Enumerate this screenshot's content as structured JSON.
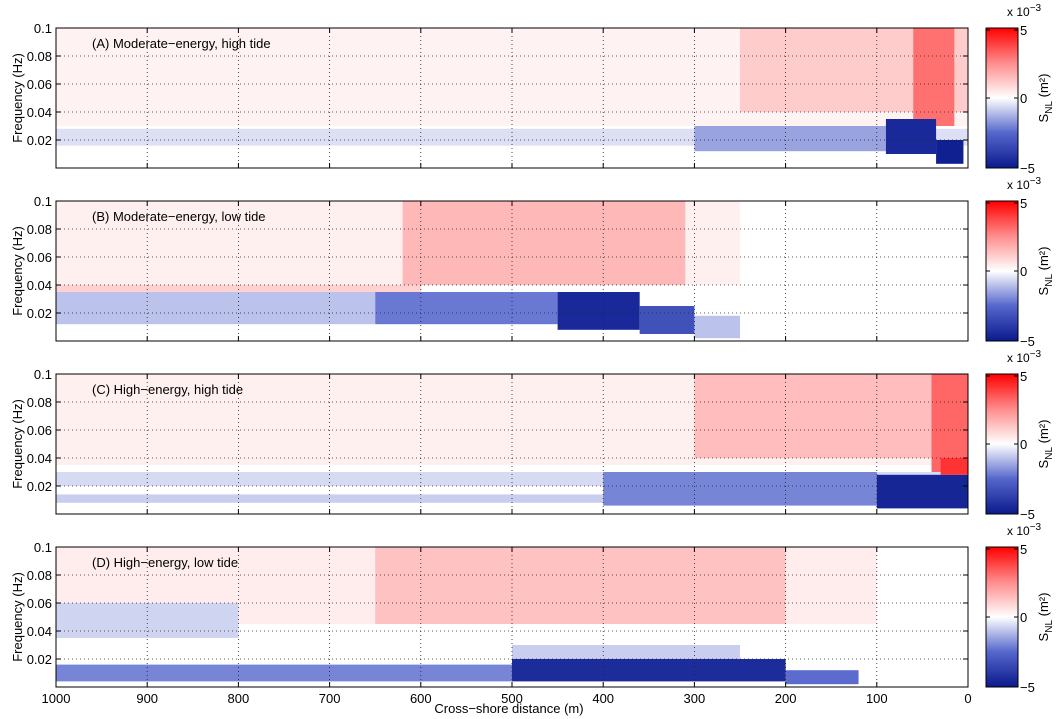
{
  "figure": {
    "xlabel": "Cross−shore distance (m)",
    "ylabel": "Frequency (Hz)",
    "colorbar_label_main": "S",
    "colorbar_label_sub": "NL",
    "colorbar_label_unit": " (m²)",
    "colorbar_exponent_prefix": "x 10",
    "colorbar_exponent_power": "−3"
  },
  "chart_data": [
    {
      "type": "heatmap",
      "panel": "A",
      "annotation": "(A) Moderate−energy, high tide",
      "xlabel": "",
      "ylabel": "Frequency (Hz)",
      "xlim": [
        1000,
        0
      ],
      "ylim": [
        0,
        0.1
      ],
      "x_reversed": true,
      "x_tick_values": [
        1000,
        900,
        800,
        700,
        600,
        500,
        400,
        300,
        200,
        100,
        0
      ],
      "x_tick_labels": [],
      "y_tick_values": [
        0.02,
        0.04,
        0.06,
        0.08,
        0.1
      ],
      "y_tick_labels": [
        "0.02",
        "0.04",
        "0.06",
        "0.08",
        "0.1"
      ],
      "grid": true,
      "colormap": "blue-white-red",
      "clim": [
        -5,
        5
      ],
      "color_units": "x 10^-3 m^2",
      "colorbar_ticks": [
        "−5",
        "0",
        "5"
      ],
      "features": [
        {
          "x_from": 1000,
          "x_to": 0,
          "f_from": 0.03,
          "f_to": 0.1,
          "value": 0.25
        },
        {
          "x_from": 250,
          "x_to": 0,
          "f_from": 0.04,
          "f_to": 0.1,
          "value": 1.0
        },
        {
          "x_from": 60,
          "x_to": 15,
          "f_from": 0.03,
          "f_to": 0.1,
          "value": 2.8
        },
        {
          "x_from": 1000,
          "x_to": 0,
          "f_from": 0.016,
          "f_to": 0.028,
          "value": -0.5
        },
        {
          "x_from": 300,
          "x_to": 90,
          "f_from": 0.012,
          "f_to": 0.03,
          "value": -1.5
        },
        {
          "x_from": 90,
          "x_to": 35,
          "f_from": 0.01,
          "f_to": 0.035,
          "value": -4.5
        },
        {
          "x_from": 35,
          "x_to": 5,
          "f_from": 0.003,
          "f_to": 0.02,
          "value": -4.8
        }
      ]
    },
    {
      "type": "heatmap",
      "panel": "B",
      "annotation": "(B) Moderate−energy, low tide",
      "xlabel": "",
      "ylabel": "Frequency (Hz)",
      "xlim": [
        1000,
        0
      ],
      "ylim": [
        0,
        0.1
      ],
      "x_reversed": true,
      "x_tick_values": [
        1000,
        900,
        800,
        700,
        600,
        500,
        400,
        300,
        200,
        100,
        0
      ],
      "x_tick_labels": [],
      "y_tick_values": [
        0.02,
        0.04,
        0.06,
        0.08,
        0.1
      ],
      "y_tick_labels": [
        "0.02",
        "0.04",
        "0.06",
        "0.08",
        "0.1"
      ],
      "grid": true,
      "colormap": "blue-white-red",
      "clim": [
        -5,
        5
      ],
      "color_units": "x 10^-3 m^2",
      "colorbar_ticks": [
        "−5",
        "0",
        "5"
      ],
      "features": [
        {
          "x_from": 1000,
          "x_to": 250,
          "f_from": 0.04,
          "f_to": 0.1,
          "value": 0.3
        },
        {
          "x_from": 620,
          "x_to": 310,
          "f_from": 0.04,
          "f_to": 0.1,
          "value": 1.4
        },
        {
          "x_from": 1000,
          "x_to": 600,
          "f_from": 0.035,
          "f_to": 0.04,
          "value": 0.9
        },
        {
          "x_from": 1000,
          "x_to": 650,
          "f_from": 0.012,
          "f_to": 0.035,
          "value": -1.0
        },
        {
          "x_from": 650,
          "x_to": 450,
          "f_from": 0.012,
          "f_to": 0.035,
          "value": -2.2
        },
        {
          "x_from": 450,
          "x_to": 360,
          "f_from": 0.008,
          "f_to": 0.035,
          "value": -4.5
        },
        {
          "x_from": 360,
          "x_to": 300,
          "f_from": 0.005,
          "f_to": 0.025,
          "value": -3.2
        },
        {
          "x_from": 300,
          "x_to": 250,
          "f_from": 0.002,
          "f_to": 0.018,
          "value": -1.0
        }
      ]
    },
    {
      "type": "heatmap",
      "panel": "C",
      "annotation": "(C) High−energy, high tide",
      "xlabel": "",
      "ylabel": "Frequency (Hz)",
      "xlim": [
        1000,
        0
      ],
      "ylim": [
        0,
        0.1
      ],
      "x_reversed": true,
      "x_tick_values": [
        1000,
        900,
        800,
        700,
        600,
        500,
        400,
        300,
        200,
        100,
        0
      ],
      "x_tick_labels": [],
      "y_tick_values": [
        0.02,
        0.04,
        0.06,
        0.08,
        0.1
      ],
      "y_tick_labels": [
        "0.02",
        "0.04",
        "0.06",
        "0.08",
        "0.1"
      ],
      "grid": true,
      "colormap": "blue-white-red",
      "clim": [
        -5,
        5
      ],
      "color_units": "x 10^-3 m^2",
      "colorbar_ticks": [
        "−5",
        "0",
        "5"
      ],
      "features": [
        {
          "x_from": 1000,
          "x_to": 0,
          "f_from": 0.035,
          "f_to": 0.1,
          "value": 0.3
        },
        {
          "x_from": 300,
          "x_to": 0,
          "f_from": 0.04,
          "f_to": 0.1,
          "value": 1.3
        },
        {
          "x_from": 40,
          "x_to": 0,
          "f_from": 0.025,
          "f_to": 0.1,
          "value": 3.0
        },
        {
          "x_from": 1000,
          "x_to": 0,
          "f_from": 0.02,
          "f_to": 0.03,
          "value": -0.6
        },
        {
          "x_from": 1000,
          "x_to": 0,
          "f_from": 0.008,
          "f_to": 0.014,
          "value": -0.8
        },
        {
          "x_from": 400,
          "x_to": 100,
          "f_from": 0.006,
          "f_to": 0.03,
          "value": -2.0
        },
        {
          "x_from": 100,
          "x_to": 0,
          "f_from": 0.004,
          "f_to": 0.028,
          "value": -4.6
        },
        {
          "x_from": 30,
          "x_to": 0,
          "f_from": 0.028,
          "f_to": 0.04,
          "value": 4.0
        }
      ]
    },
    {
      "type": "heatmap",
      "panel": "D",
      "annotation": "(D) High−energy, low tide",
      "xlabel": "Cross−shore distance (m)",
      "ylabel": "Frequency (Hz)",
      "xlim": [
        1000,
        0
      ],
      "ylim": [
        0,
        0.1
      ],
      "x_reversed": true,
      "x_tick_values": [
        1000,
        900,
        800,
        700,
        600,
        500,
        400,
        300,
        200,
        100,
        0
      ],
      "x_tick_labels": [
        "1000",
        "900",
        "800",
        "700",
        "600",
        "500",
        "400",
        "300",
        "200",
        "100",
        "0"
      ],
      "y_tick_values": [
        0.02,
        0.04,
        0.06,
        0.08,
        0.1
      ],
      "y_tick_labels": [
        "0.02",
        "0.04",
        "0.06",
        "0.08",
        "0.1"
      ],
      "grid": true,
      "colormap": "blue-white-red",
      "clim": [
        -5,
        5
      ],
      "color_units": "x 10^-3 m^2",
      "colorbar_ticks": [
        "−5",
        "0",
        "5"
      ],
      "features": [
        {
          "x_from": 1000,
          "x_to": 100,
          "f_from": 0.045,
          "f_to": 0.1,
          "value": 0.35
        },
        {
          "x_from": 650,
          "x_to": 200,
          "f_from": 0.045,
          "f_to": 0.1,
          "value": 1.2
        },
        {
          "x_from": 1000,
          "x_to": 800,
          "f_from": 0.035,
          "f_to": 0.06,
          "value": -0.7
        },
        {
          "x_from": 1000,
          "x_to": 500,
          "f_from": 0.004,
          "f_to": 0.016,
          "value": -2.0
        },
        {
          "x_from": 500,
          "x_to": 200,
          "f_from": 0.004,
          "f_to": 0.02,
          "value": -4.4
        },
        {
          "x_from": 200,
          "x_to": 120,
          "f_from": 0.002,
          "f_to": 0.012,
          "value": -2.4
        },
        {
          "x_from": 500,
          "x_to": 250,
          "f_from": 0.02,
          "f_to": 0.03,
          "value": -0.8
        }
      ]
    }
  ]
}
